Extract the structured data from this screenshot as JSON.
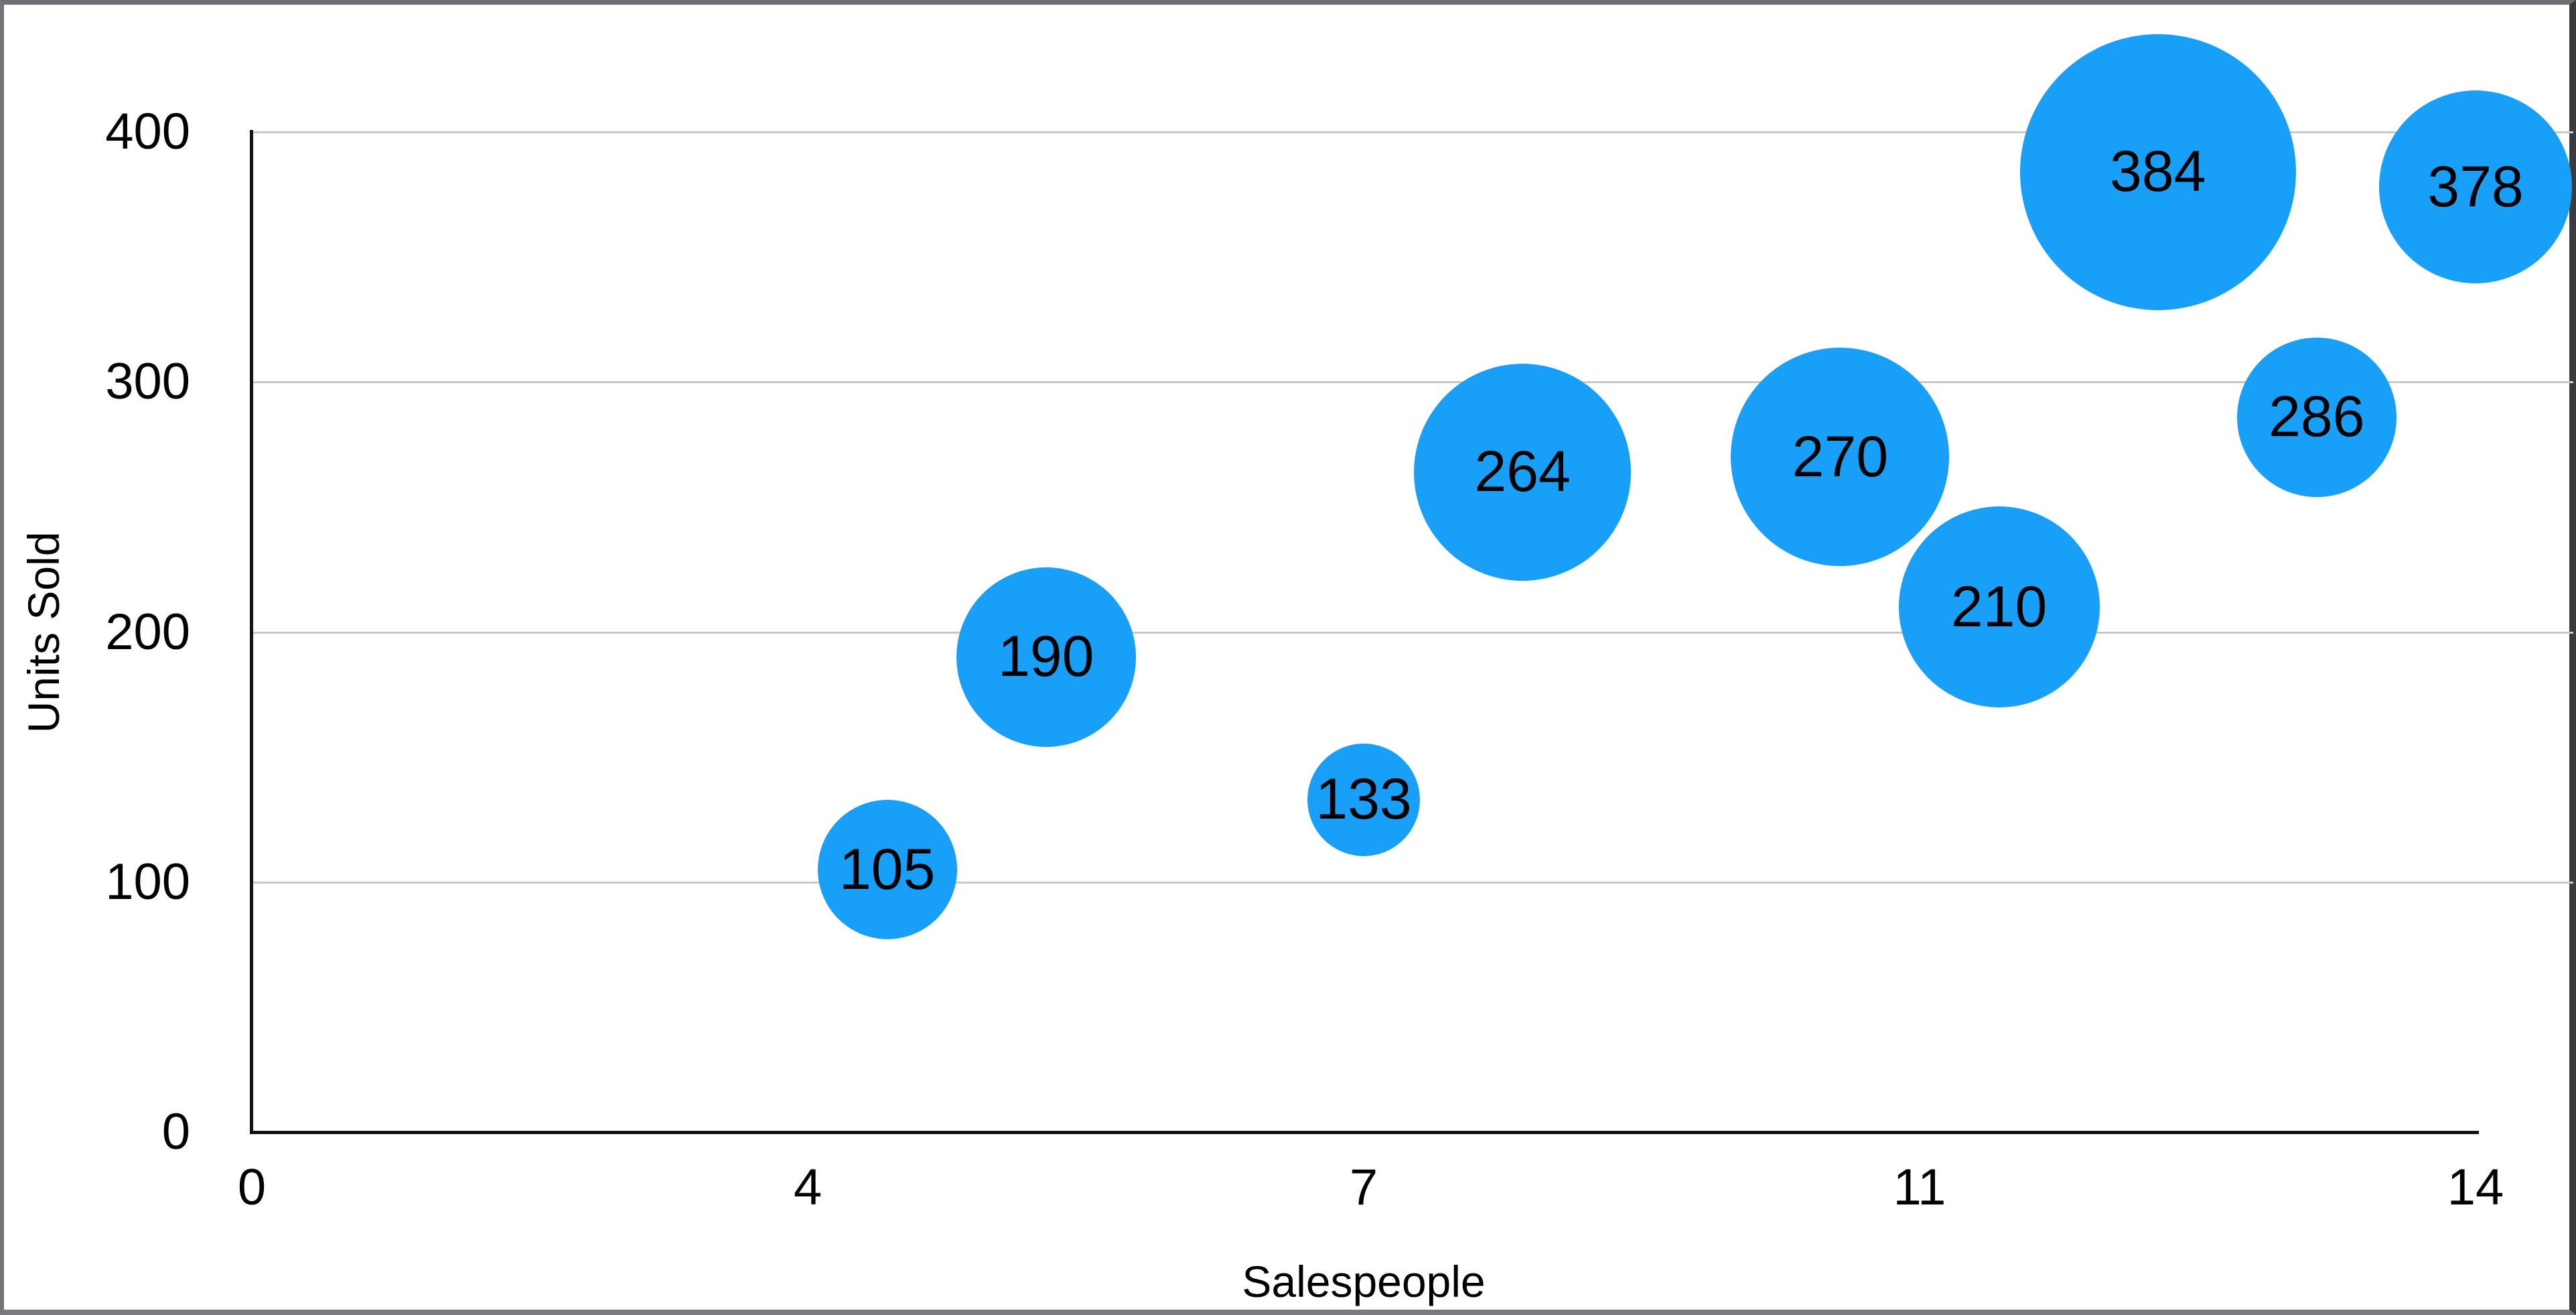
{
  "chart_data": {
    "type": "bubble",
    "title": "",
    "xlabel": "Salespeople",
    "ylabel": "Units Sold",
    "xlim": [
      0,
      14
    ],
    "ylim": [
      0,
      400
    ],
    "x_tick_labels": [
      "0",
      "4",
      "7",
      "11",
      "14"
    ],
    "y_tick_labels": [
      "0",
      "100",
      "200",
      "300",
      "400"
    ],
    "grid": "horizontal-only",
    "legend": "none",
    "points": [
      {
        "salespeople": 4,
        "units_sold": 105,
        "label": "105",
        "radius_px": 104
      },
      {
        "salespeople": 5,
        "units_sold": 190,
        "label": "190",
        "radius_px": 134
      },
      {
        "salespeople": 7,
        "units_sold": 133,
        "label": "133",
        "radius_px": 84
      },
      {
        "salespeople": 8,
        "units_sold": 264,
        "label": "264",
        "radius_px": 162
      },
      {
        "salespeople": 10,
        "units_sold": 270,
        "label": "270",
        "radius_px": 163
      },
      {
        "salespeople": 11,
        "units_sold": 210,
        "label": "210",
        "radius_px": 150
      },
      {
        "salespeople": 12,
        "units_sold": 384,
        "label": "384",
        "radius_px": 206
      },
      {
        "salespeople": 13,
        "units_sold": 286,
        "label": "286",
        "radius_px": 119
      },
      {
        "salespeople": 14,
        "units_sold": 378,
        "label": "378",
        "radius_px": 144
      }
    ],
    "colors": {
      "bubble_fill": "#18A0F8",
      "bubble_label": "#000000",
      "gridline": "#C8C8C8",
      "axis_line": "#141414",
      "tick_text": "#000000",
      "frame_border": "#6E6E72",
      "frame_border_right": "#3B3B3D",
      "background": "#FFFFFF"
    }
  }
}
